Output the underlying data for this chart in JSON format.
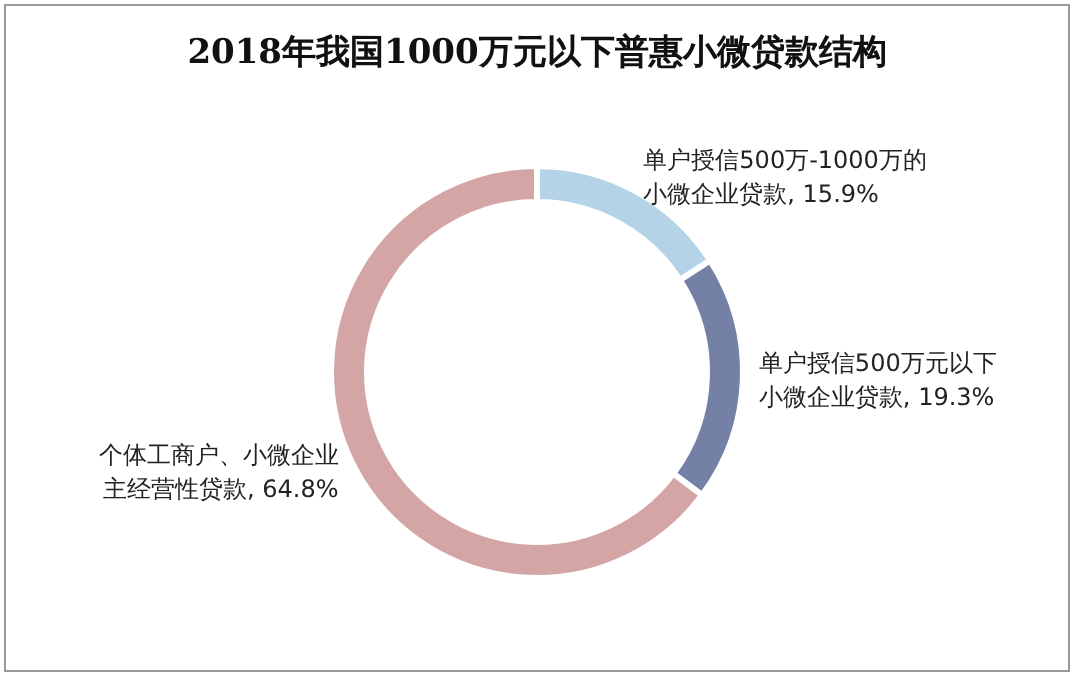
{
  "chart_data": {
    "type": "donut",
    "title": "2018年我国1000万元以下普惠小微贷款结构",
    "categories": [
      "单户授信500万-1000万的小微企业贷款",
      "单户授信500万元以下小微企业贷款",
      "个体工商户、小微企业主经营性贷款"
    ],
    "values": [
      15.9,
      19.3,
      64.8
    ],
    "value_labels": [
      "15.9%",
      "19.3%",
      "64.8%"
    ],
    "colors": [
      "#b4d3e6",
      "#7480a6",
      "#d4a5a5"
    ],
    "legend": false
  }
}
